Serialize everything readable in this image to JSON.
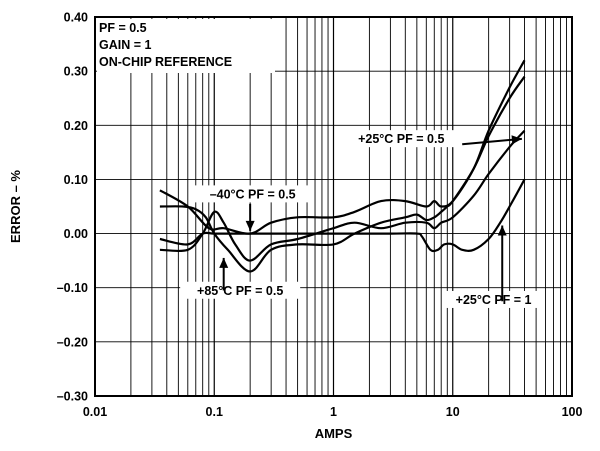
{
  "chart_data": {
    "type": "line",
    "title": "",
    "xlabel": "AMPS",
    "ylabel": "ERROR – %",
    "x_scale": "log",
    "xlim": [
      0.01,
      100
    ],
    "ylim": [
      -0.3,
      0.4
    ],
    "grid": true,
    "x_tick_labels": [
      "0.01",
      "0.1",
      "1",
      "10",
      "100"
    ],
    "y_tick_labels": [
      "0.40",
      "0.30",
      "0.20",
      "0.10",
      "0.00",
      "–0.10",
      "–0.20",
      "–0.30"
    ],
    "info_box": [
      "PF = 0.5",
      "GAIN = 1",
      "ON-CHIP REFERENCE"
    ],
    "series": [
      {
        "label": "–40°C PF = 0.5",
        "points": [
          [
            0.035,
            0.08
          ],
          [
            0.06,
            0.05
          ],
          [
            0.09,
            0.01
          ],
          [
            0.12,
            0.01
          ],
          [
            0.2,
            0.0
          ],
          [
            0.3,
            0.02
          ],
          [
            0.5,
            0.03
          ],
          [
            1,
            0.03
          ],
          [
            1.5,
            0.04
          ],
          [
            2.5,
            0.06
          ],
          [
            4,
            0.06
          ],
          [
            6,
            0.05
          ],
          [
            7,
            0.06
          ],
          [
            8,
            0.05
          ],
          [
            10,
            0.06
          ],
          [
            15,
            0.12
          ],
          [
            20,
            0.19
          ],
          [
            30,
            0.27
          ],
          [
            40,
            0.32
          ]
        ]
      },
      {
        "label": "+85°C PF = 0.5",
        "points": [
          [
            0.035,
            0.05
          ],
          [
            0.055,
            0.05
          ],
          [
            0.07,
            0.045
          ],
          [
            0.085,
            0.03
          ],
          [
            0.1,
            0.0
          ],
          [
            0.13,
            -0.03
          ],
          [
            0.2,
            -0.07
          ],
          [
            0.3,
            -0.03
          ],
          [
            0.5,
            -0.02
          ],
          [
            1,
            -0.02
          ],
          [
            1.5,
            0.0
          ],
          [
            2.5,
            0.02
          ],
          [
            4,
            0.03
          ],
          [
            5,
            0.035
          ],
          [
            6,
            0.025
          ],
          [
            7,
            0.03
          ],
          [
            8,
            0.04
          ],
          [
            9,
            0.05
          ],
          [
            10,
            0.06
          ],
          [
            15,
            0.12
          ],
          [
            20,
            0.18
          ],
          [
            30,
            0.25
          ],
          [
            40,
            0.29
          ]
        ]
      },
      {
        "label": "+25°C PF = 0.5",
        "points": [
          [
            0.035,
            -0.03
          ],
          [
            0.06,
            -0.03
          ],
          [
            0.08,
            0.0
          ],
          [
            0.1,
            0.04
          ],
          [
            0.12,
            0.02
          ],
          [
            0.15,
            -0.02
          ],
          [
            0.2,
            -0.05
          ],
          [
            0.3,
            -0.02
          ],
          [
            0.5,
            -0.01
          ],
          [
            1,
            0.01
          ],
          [
            1.5,
            0.02
          ],
          [
            2.5,
            0.01
          ],
          [
            4,
            0.02
          ],
          [
            6,
            0.02
          ],
          [
            7,
            0.01
          ],
          [
            8,
            0.02
          ],
          [
            10,
            0.03
          ],
          [
            15,
            0.07
          ],
          [
            20,
            0.11
          ],
          [
            30,
            0.16
          ],
          [
            40,
            0.19
          ]
        ]
      },
      {
        "label": "+25°C PF = 1",
        "points": [
          [
            0.035,
            -0.01
          ],
          [
            0.06,
            -0.02
          ],
          [
            0.08,
            0.0
          ],
          [
            0.1,
            0.0
          ],
          [
            0.15,
            0.0
          ],
          [
            0.3,
            0.0
          ],
          [
            0.5,
            0.0
          ],
          [
            1,
            0.0
          ],
          [
            3,
            0.0
          ],
          [
            5,
            0.0
          ],
          [
            5.5,
            -0.005
          ],
          [
            6.5,
            -0.03
          ],
          [
            7.5,
            -0.03
          ],
          [
            8.5,
            -0.02
          ],
          [
            10,
            -0.02
          ],
          [
            12,
            -0.03
          ],
          [
            15,
            -0.03
          ],
          [
            20,
            -0.01
          ],
          [
            25,
            0.02
          ],
          [
            30,
            0.05
          ],
          [
            40,
            0.1
          ]
        ]
      }
    ],
    "annotations": [
      {
        "text": "–40°C PF = 0.5"
      },
      {
        "text": "+85°C PF = 0.5"
      },
      {
        "text": "+25°C PF = 0.5"
      },
      {
        "text": "+25°C PF = 1"
      }
    ]
  }
}
